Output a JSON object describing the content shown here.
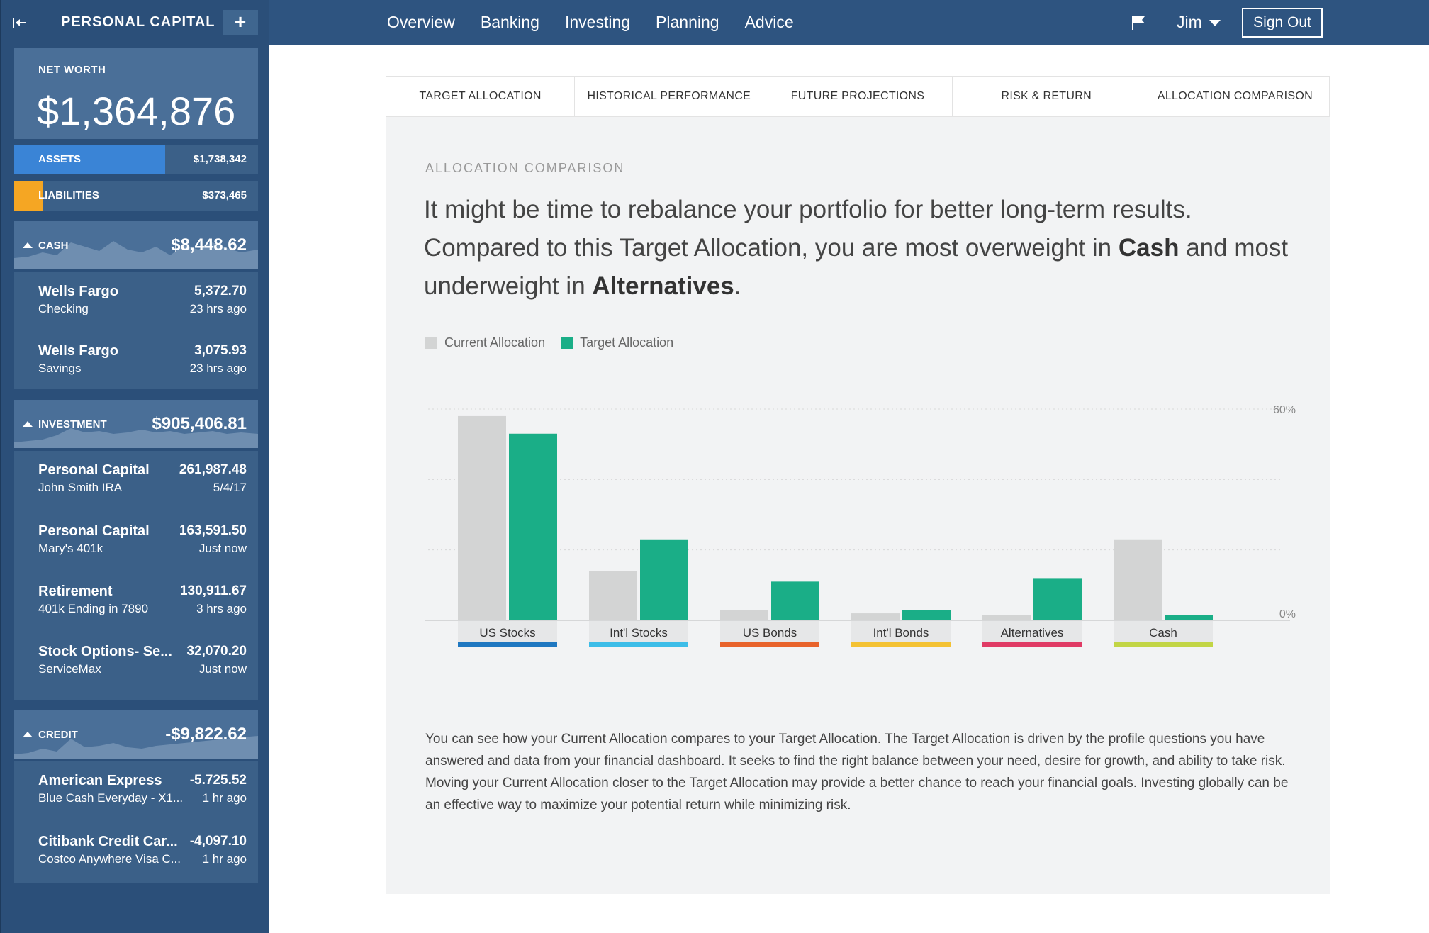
{
  "app": {
    "brand": "PERSONAL CAPITAL",
    "add_label": "+",
    "nav": [
      "Overview",
      "Banking",
      "Investing",
      "Planning",
      "Advice"
    ],
    "user": "Jim",
    "signout": "Sign Out"
  },
  "sidebar": {
    "net_worth_label": "NET WORTH",
    "net_worth": "$1,364,876",
    "assets_label": "ASSETS",
    "assets": "$1,738,342",
    "assets_fraction": 0.62,
    "liabilities_label": "LIABILITIES",
    "liabilities": "$373,465",
    "liabilities_fraction": 0.12,
    "cash": {
      "label": "CASH",
      "value": "$8,448.62",
      "accounts": [
        {
          "name": "Wells Fargo",
          "sub": "Checking",
          "value": "5,372.70",
          "time": "23 hrs ago"
        },
        {
          "name": "Wells Fargo",
          "sub": "Savings",
          "value": "3,075.93",
          "time": "23 hrs ago"
        }
      ]
    },
    "investment": {
      "label": "INVESTMENT",
      "value": "$905,406.81",
      "accounts": [
        {
          "name": "Personal Capital",
          "sub": "John Smith IRA",
          "value": "261,987.48",
          "time": "5/4/17"
        },
        {
          "name": "Personal Capital",
          "sub": "Mary's 401k",
          "value": "163,591.50",
          "time": "Just now"
        },
        {
          "name": "Retirement",
          "sub": "401k Ending in 7890",
          "value": "130,911.67",
          "time": "3 hrs ago"
        },
        {
          "name": "Stock Options- Se...",
          "sub": "ServiceMax",
          "value": "32,070.20",
          "time": "Just now"
        }
      ]
    },
    "credit": {
      "label": "CREDIT",
      "value": "-$9,822.62",
      "accounts": [
        {
          "name": "American Express",
          "sub": "Blue Cash Everyday - X1...",
          "value": "-5.725.52",
          "time": "1 hr ago"
        },
        {
          "name": "Citibank Credit Car...",
          "sub": "Costco Anywhere Visa C...",
          "value": "-4,097.10",
          "time": "1 hr ago"
        }
      ]
    }
  },
  "tabs": [
    "TARGET ALLOCATION",
    "HISTORICAL PERFORMANCE",
    "FUTURE PROJECTIONS",
    "RISK & RETURN",
    "ALLOCATION COMPARISON"
  ],
  "content": {
    "title": "ALLOCATION COMPARISON",
    "headline_1": "It might be time to rebalance your portfolio for better long-term results. Compared to this Target Allocation, you are most overweight in ",
    "headline_bold_1": "Cash",
    "headline_2": " and most underweight in ",
    "headline_bold_2": "Alternatives",
    "headline_3": ".",
    "description": "You can see how your Current Allocation compares to your Target Allocation. The Target Allocation is driven by the profile questions you have answered and data from your financial dashboard. It seeks to find the right balance between your need, desire for growth, and ability to take risk. Moving your Current Allocation closer to the Target Allocation may provide a better chance to reach your financial goals. Investing globally can be an effective way to maximize your potential return while minimizing risk."
  },
  "colors": {
    "current": "#d3d4d4",
    "target": "#1aae87",
    "category": [
      "#1f78c1",
      "#3dbde8",
      "#e8632b",
      "#f4c233",
      "#e03b65",
      "#c2d545"
    ]
  },
  "chart_data": {
    "type": "bar",
    "categories": [
      "US Stocks",
      "Int'l Stocks",
      "US Bonds",
      "Int'l Bonds",
      "Alternatives",
      "Cash"
    ],
    "series": [
      {
        "name": "Current Allocation",
        "values": [
          58,
          14,
          3,
          2,
          1.5,
          23
        ]
      },
      {
        "name": "Target Allocation",
        "values": [
          53,
          23,
          11,
          3,
          12,
          1.5
        ]
      }
    ],
    "y_tick_labels": [
      "60%",
      "0%"
    ],
    "ylim": [
      0,
      60
    ],
    "grid": true,
    "legend": "top-left"
  }
}
